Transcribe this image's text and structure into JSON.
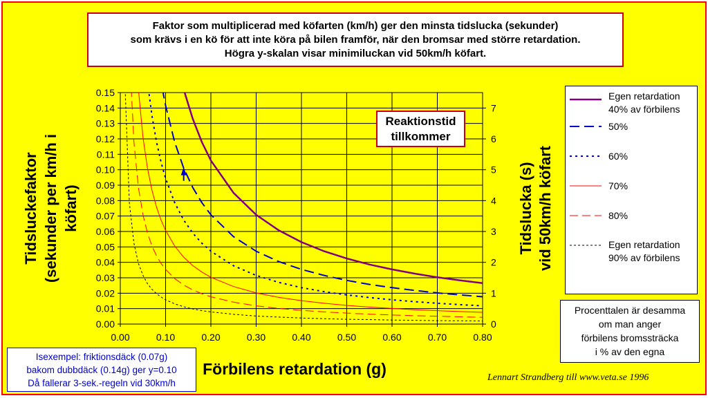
{
  "title_lines": [
    "Faktor som multiplicerad med köfarten (km/h) ger den minsta tidslucka (sekunder)",
    "som krävs i en kö för att inte köra på bilen framför, när den bromsar med större retardation.",
    "Högra y-skalan visar minimiluckan vid 50km/h köfart."
  ],
  "reaction_box": [
    "Reaktionstid",
    "tillkommer"
  ],
  "legend": [
    {
      "line1": "Egen retardation",
      "line2": "40% av förbilens"
    },
    {
      "line1": "50%"
    },
    {
      "line1": "60%"
    },
    {
      "line1": "70%"
    },
    {
      "line1": "80%"
    },
    {
      "line1": "Egen retardation",
      "line2": "90% av förbilens"
    }
  ],
  "note_lines": [
    "Procenttalen är desamma",
    "om man anger",
    "förbilens bromssträcka",
    "i % av den egna"
  ],
  "example_lines": [
    "Isexempel: friktionsdäck (0.07g)",
    "bakom dubbdäck (0.14g) ger y=0.10",
    "Då fallerar 3-sek.-regeln vid 30km/h"
  ],
  "credit": "Lennart Strandberg till www.veta.se 1996",
  "chart_data": {
    "type": "line",
    "xlabel": "Förbilens retardation (g)",
    "ylabel_lines": [
      "Tidsluckefaktor",
      "(sekunder per km/h i",
      "köfart)"
    ],
    "y2label_lines": [
      "Tidslucka (s)",
      "vid 50km/h köfart"
    ],
    "xlim": [
      0,
      0.8
    ],
    "ylim": [
      0,
      0.15
    ],
    "y2lim": [
      0,
      7.5
    ],
    "xticks": [
      "0.00",
      "0.10",
      "0.20",
      "0.30",
      "0.40",
      "0.50",
      "0.60",
      "0.70",
      "0.80"
    ],
    "yticks": [
      "0.00",
      "0.01",
      "0.02",
      "0.03",
      "0.04",
      "0.05",
      "0.06",
      "0.07",
      "0.08",
      "0.09",
      "0.10",
      "0.11",
      "0.12",
      "0.13",
      "0.14",
      "0.15"
    ],
    "y2ticks": [
      "0",
      "1",
      "2",
      "3",
      "4",
      "5",
      "6",
      "7"
    ],
    "grid": true,
    "legend_position": "right",
    "x": [
      0.01,
      0.02,
      0.03,
      0.04,
      0.05,
      0.06,
      0.07,
      0.08,
      0.09,
      0.1,
      0.12,
      0.14,
      0.16,
      0.18,
      0.2,
      0.25,
      0.3,
      0.35,
      0.4,
      0.45,
      0.5,
      0.55,
      0.6,
      0.65,
      0.7,
      0.75,
      0.8
    ],
    "series": [
      {
        "name": "40%",
        "color": "#800080",
        "dash": "solid",
        "width": 2.5,
        "values": [
          2.12,
          1.06,
          0.708,
          0.531,
          0.425,
          0.354,
          0.303,
          0.265,
          0.236,
          0.212,
          0.177,
          0.152,
          0.133,
          0.118,
          0.106,
          0.085,
          0.0708,
          0.0607,
          0.0531,
          0.0472,
          0.0425,
          0.0386,
          0.0354,
          0.0327,
          0.0303,
          0.0283,
          0.0265
        ]
      },
      {
        "name": "50%",
        "color": "#0000cc",
        "dash": "14,7",
        "width": 2,
        "values": [
          1.416,
          0.708,
          0.472,
          0.354,
          0.283,
          0.236,
          0.202,
          0.177,
          0.157,
          0.1416,
          0.118,
          0.101,
          0.0885,
          0.0787,
          0.0708,
          0.0566,
          0.0472,
          0.0405,
          0.0354,
          0.0315,
          0.0283,
          0.0257,
          0.0236,
          0.0218,
          0.0202,
          0.0189,
          0.0177
        ]
      },
      {
        "name": "60%",
        "color": "#0000cc",
        "dash": "3,5",
        "width": 2,
        "values": [
          0.944,
          0.472,
          0.315,
          0.236,
          0.189,
          0.157,
          0.135,
          0.118,
          0.105,
          0.0944,
          0.0787,
          0.0674,
          0.059,
          0.0524,
          0.0472,
          0.0378,
          0.0315,
          0.027,
          0.0236,
          0.021,
          0.0189,
          0.0172,
          0.0157,
          0.0145,
          0.0135,
          0.0126,
          0.0118
        ]
      },
      {
        "name": "70%",
        "color": "#ff0000",
        "dash": "solid",
        "width": 1,
        "values": [
          0.607,
          0.303,
          0.202,
          0.152,
          0.121,
          0.101,
          0.0867,
          0.0758,
          0.0674,
          0.0607,
          0.0506,
          0.0433,
          0.0379,
          0.0337,
          0.0303,
          0.0243,
          0.0202,
          0.0173,
          0.0152,
          0.0135,
          0.0121,
          0.011,
          0.0101,
          0.0093,
          0.0087,
          0.0081,
          0.0076
        ]
      },
      {
        "name": "80%",
        "color": "#ff0000",
        "dash": "12,6",
        "width": 1,
        "values": [
          0.354,
          0.177,
          0.118,
          0.0885,
          0.0708,
          0.059,
          0.0506,
          0.0442,
          0.0393,
          0.0354,
          0.0295,
          0.0253,
          0.0221,
          0.0197,
          0.0177,
          0.0142,
          0.0118,
          0.0101,
          0.0089,
          0.0079,
          0.0071,
          0.0064,
          0.0059,
          0.0054,
          0.0051,
          0.0047,
          0.0044
        ]
      },
      {
        "name": "90%",
        "color": "#000000",
        "dash": "3,3",
        "width": 1,
        "values": [
          0.157,
          0.0787,
          0.0524,
          0.0393,
          0.0315,
          0.0262,
          0.0225,
          0.0197,
          0.0175,
          0.0157,
          0.0131,
          0.0112,
          0.0098,
          0.0087,
          0.0079,
          0.0063,
          0.0052,
          0.0045,
          0.0039,
          0.0035,
          0.0031,
          0.0029,
          0.0026,
          0.0024,
          0.0022,
          0.0021,
          0.002
        ]
      }
    ],
    "annotation": {
      "x": 0.14,
      "y": 0.1,
      "color": "#0000cc"
    }
  }
}
